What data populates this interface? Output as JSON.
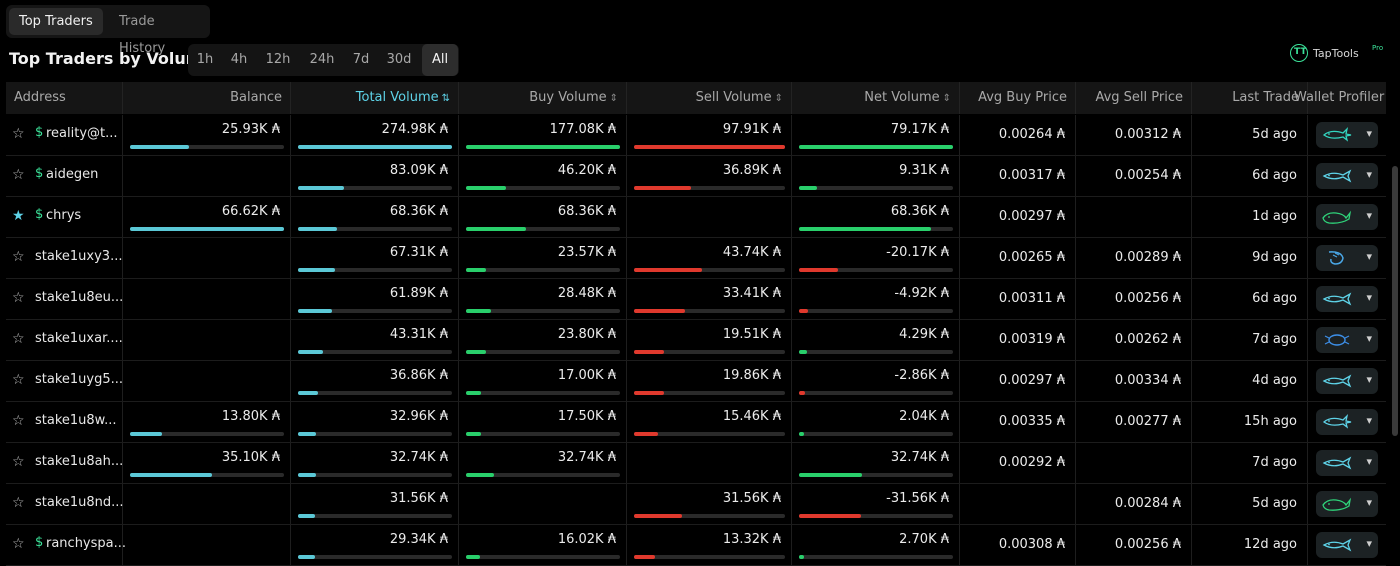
{
  "tabs": [
    {
      "label": "Top Traders"
    },
    {
      "label": "Trade History"
    }
  ],
  "title": "Top Traders by Volume",
  "timeframes": [
    "1h",
    "4h",
    "12h",
    "24h",
    "7d",
    "30d",
    "All"
  ],
  "brand": {
    "name": "TapTools",
    "badge": "Pro",
    "logo": "TT"
  },
  "columns": {
    "address": "Address",
    "balance": "Balance",
    "total": "Total Volume",
    "buy": "Buy Volume",
    "sell": "Sell Volume",
    "net": "Net Volume",
    "avg_buy": "Avg Buy Price",
    "avg_sell": "Avg Sell Price",
    "last": "Last Trade",
    "profiler": "Wallet Profiler"
  },
  "colors": {
    "accent": "#5ed3e8",
    "buy": "#29cf6b",
    "sell": "#e0392d",
    "balance_bar": "#5bc8d6"
  },
  "rows": [
    {
      "fav": false,
      "dollar": true,
      "address": "reality@t...",
      "balance": "25.93K ₳",
      "balance_frac": 0.38,
      "total": "274.98K ₳",
      "total_frac": 1.0,
      "buy": "177.08K ₳",
      "buy_frac": 1.0,
      "sell": "97.91K ₳",
      "sell_frac": 1.0,
      "net": "79.17K ₳",
      "net_frac": 1.0,
      "avg_buy": "0.00264 ₳",
      "avg_sell": "0.00312 ₳",
      "last": "5d ago",
      "animal": "shark",
      "animal_color": "#33d6c0"
    },
    {
      "fav": false,
      "dollar": true,
      "address": "aidegen",
      "balance": "",
      "balance_frac": 0,
      "total": "83.09K ₳",
      "total_frac": 0.3,
      "buy": "46.20K ₳",
      "buy_frac": 0.26,
      "sell": "36.89K ₳",
      "sell_frac": 0.38,
      "net": "9.31K ₳",
      "net_frac": 0.12,
      "avg_buy": "0.00317 ₳",
      "avg_sell": "0.00254 ₳",
      "last": "6d ago",
      "animal": "fish",
      "animal_color": "#5ed3e8"
    },
    {
      "fav": true,
      "dollar": true,
      "address": "chrys",
      "balance": "66.62K ₳",
      "balance_frac": 1.0,
      "total": "68.36K ₳",
      "total_frac": 0.25,
      "buy": "68.36K ₳",
      "buy_frac": 0.39,
      "sell": "",
      "sell_frac": 0,
      "net": "68.36K ₳",
      "net_frac": 0.86,
      "avg_buy": "0.00297 ₳",
      "avg_sell": "",
      "last": "1d ago",
      "animal": "whale",
      "animal_color": "#2fd47a"
    },
    {
      "fav": false,
      "dollar": false,
      "address": "stake1uxy3...",
      "balance": "",
      "balance_frac": 0,
      "total": "67.31K ₳",
      "total_frac": 0.24,
      "buy": "23.57K ₳",
      "buy_frac": 0.13,
      "sell": "43.74K ₳",
      "sell_frac": 0.45,
      "net": "-20.17K ₳",
      "net_frac": 0.25,
      "avg_buy": "0.00265 ₳",
      "avg_sell": "0.00289 ₳",
      "last": "9d ago",
      "animal": "shrimp",
      "animal_color": "#4aa8e8"
    },
    {
      "fav": false,
      "dollar": false,
      "address": "stake1u8eu...",
      "balance": "",
      "balance_frac": 0,
      "total": "61.89K ₳",
      "total_frac": 0.22,
      "buy": "28.48K ₳",
      "buy_frac": 0.16,
      "sell": "33.41K ₳",
      "sell_frac": 0.34,
      "net": "-4.92K ₳",
      "net_frac": 0.06,
      "avg_buy": "0.00311 ₳",
      "avg_sell": "0.00256 ₳",
      "last": "6d ago",
      "animal": "fish",
      "animal_color": "#5ed3e8"
    },
    {
      "fav": false,
      "dollar": false,
      "address": "stake1uxar....",
      "balance": "",
      "balance_frac": 0,
      "total": "43.31K ₳",
      "total_frac": 0.16,
      "buy": "23.80K ₳",
      "buy_frac": 0.13,
      "sell": "19.51K ₳",
      "sell_frac": 0.2,
      "net": "4.29K ₳",
      "net_frac": 0.05,
      "avg_buy": "0.00319 ₳",
      "avg_sell": "0.00262 ₳",
      "last": "7d ago",
      "animal": "crab",
      "animal_color": "#3d8fe8"
    },
    {
      "fav": false,
      "dollar": false,
      "address": "stake1uyg5...",
      "balance": "",
      "balance_frac": 0,
      "total": "36.86K ₳",
      "total_frac": 0.13,
      "buy": "17.00K ₳",
      "buy_frac": 0.1,
      "sell": "19.86K ₳",
      "sell_frac": 0.2,
      "net": "-2.86K ₳",
      "net_frac": 0.04,
      "avg_buy": "0.00297 ₳",
      "avg_sell": "0.00334 ₳",
      "last": "4d ago",
      "animal": "fish",
      "animal_color": "#5ed3e8"
    },
    {
      "fav": false,
      "dollar": false,
      "address": "stake1u8w...",
      "balance": "13.80K ₳",
      "balance_frac": 0.21,
      "total": "32.96K ₳",
      "total_frac": 0.12,
      "buy": "17.50K ₳",
      "buy_frac": 0.1,
      "sell": "15.46K ₳",
      "sell_frac": 0.16,
      "net": "2.04K ₳",
      "net_frac": 0.03,
      "avg_buy": "0.00335 ₳",
      "avg_sell": "0.00277 ₳",
      "last": "15h ago",
      "animal": "shark",
      "animal_color": "#5ed3e8"
    },
    {
      "fav": false,
      "dollar": false,
      "address": "stake1u8ah...",
      "balance": "35.10K ₳",
      "balance_frac": 0.53,
      "total": "32.74K ₳",
      "total_frac": 0.12,
      "buy": "32.74K ₳",
      "buy_frac": 0.18,
      "sell": "",
      "sell_frac": 0,
      "net": "32.74K ₳",
      "net_frac": 0.41,
      "avg_buy": "0.00292 ₳",
      "avg_sell": "",
      "last": "7d ago",
      "animal": "fish",
      "animal_color": "#5ed3e8"
    },
    {
      "fav": false,
      "dollar": false,
      "address": "stake1u8nd...",
      "balance": "",
      "balance_frac": 0,
      "total": "31.56K ₳",
      "total_frac": 0.11,
      "buy": "",
      "buy_frac": 0,
      "sell": "31.56K ₳",
      "sell_frac": 0.32,
      "net": "-31.56K ₳",
      "net_frac": 0.4,
      "avg_buy": "",
      "avg_sell": "0.00284 ₳",
      "last": "5d ago",
      "animal": "whale",
      "animal_color": "#2fd47a"
    },
    {
      "fav": false,
      "dollar": true,
      "address": "ranchyspa...",
      "balance": "",
      "balance_frac": 0,
      "total": "29.34K ₳",
      "total_frac": 0.11,
      "buy": "16.02K ₳",
      "buy_frac": 0.09,
      "sell": "13.32K ₳",
      "sell_frac": 0.14,
      "net": "2.70K ₳",
      "net_frac": 0.03,
      "avg_buy": "0.00308 ₳",
      "avg_sell": "0.00256 ₳",
      "last": "12d ago",
      "animal": "fish",
      "animal_color": "#5ed3e8"
    }
  ]
}
